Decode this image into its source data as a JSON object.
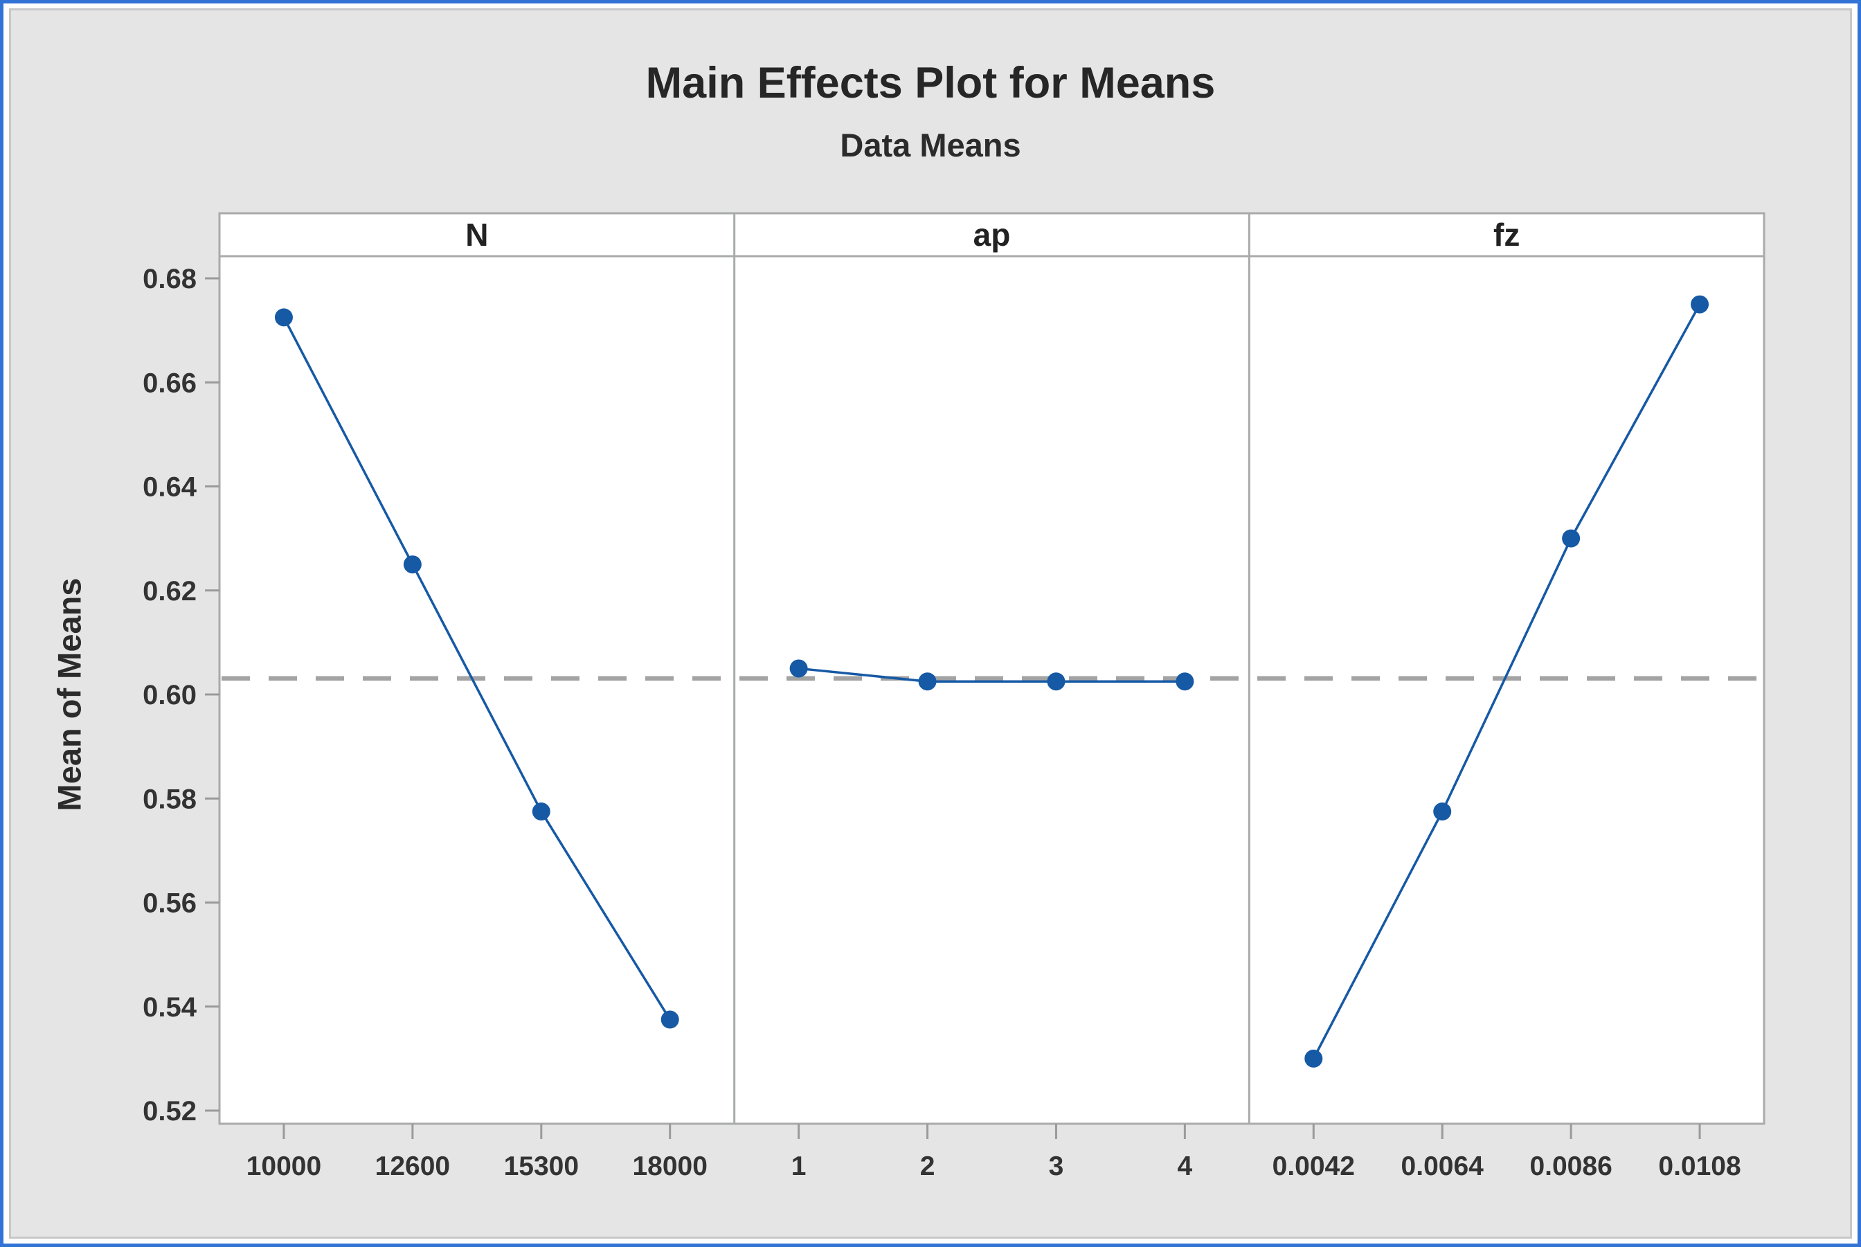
{
  "window": {
    "border_color": "#3273D6"
  },
  "figure": {
    "background_color": "#E5E5E6",
    "border_color": "#C7C8C9",
    "panel_background": "#FFFFFF",
    "panel_border_color": "#A9AAAB"
  },
  "chart_data": {
    "type": "line",
    "title": "Main Effects Plot for Means",
    "subtitle": "Data Means",
    "ylabel": "Mean of Means",
    "xlabel": "",
    "ylim": [
      0.5175,
      0.6845
    ],
    "yticks": [
      0.52,
      0.54,
      0.56,
      0.58,
      0.6,
      0.62,
      0.64,
      0.66,
      0.68
    ],
    "grid": false,
    "legend": "none",
    "grand_mean": 0.6031,
    "panels": [
      {
        "label": "N",
        "categories": [
          "10000",
          "12600",
          "15300",
          "18000"
        ],
        "values": [
          0.6725,
          0.625,
          0.5775,
          0.5375
        ]
      },
      {
        "label": "ap",
        "categories": [
          "1",
          "2",
          "3",
          "4"
        ],
        "values": [
          0.605,
          0.6025,
          0.6025,
          0.6025
        ]
      },
      {
        "label": "fz",
        "categories": [
          "0.0042",
          "0.0064",
          "0.0086",
          "0.0108"
        ],
        "values": [
          0.53,
          0.5775,
          0.63,
          0.675
        ]
      }
    ],
    "series_color": "#1659A5",
    "marker": "circle",
    "marker_radius": 13,
    "reference_line_color": "#A3A3A3",
    "reference_line_style": "dashed",
    "tick_color": "#9A9A9A",
    "tick_label_color": "#333333"
  }
}
